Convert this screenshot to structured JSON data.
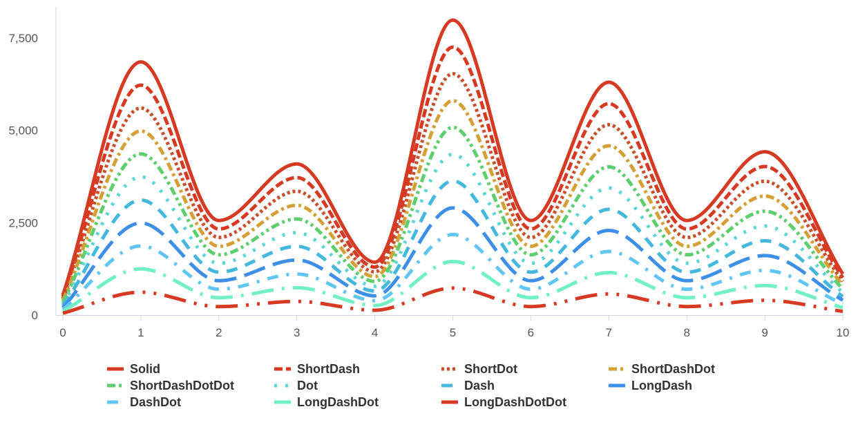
{
  "chart_data": {
    "type": "line",
    "title": "",
    "xlabel": "",
    "ylabel": "",
    "xlim": [
      0,
      10
    ],
    "ylim": [
      0,
      8300
    ],
    "x_ticks": [
      0,
      1,
      2,
      3,
      4,
      5,
      6,
      7,
      8,
      9,
      10
    ],
    "y_ticks": [
      0,
      2500,
      5000,
      7500
    ],
    "y_tick_labels": [
      "0",
      "2,500",
      "5,000",
      "7,500"
    ],
    "x": [
      0,
      1,
      2,
      3,
      4,
      5,
      6,
      7,
      8,
      9,
      10
    ],
    "legend_position": "bottom",
    "series": [
      {
        "name": "Solid",
        "color": "#d63a22",
        "dash": "solid",
        "values": [
          540,
          6850,
          2560,
          4090,
          1430,
          7980,
          2560,
          6300,
          2560,
          4420,
          1110
        ]
      },
      {
        "name": "ShortDash",
        "color": "#d63a22",
        "dash": "shortdash",
        "values": [
          490,
          6220,
          2330,
          3720,
          1300,
          7250,
          2330,
          5720,
          2330,
          4020,
          1010
        ]
      },
      {
        "name": "ShortDot",
        "color": "#c8502a",
        "dash": "shortdot",
        "values": [
          440,
          5600,
          2100,
          3350,
          1170,
          6530,
          2100,
          5150,
          2100,
          3620,
          910
        ]
      },
      {
        "name": "ShortDashDot",
        "color": "#d4a037",
        "dash": "shortdashdot",
        "values": [
          390,
          4980,
          1860,
          2970,
          1040,
          5800,
          1860,
          4580,
          1860,
          3220,
          810
        ]
      },
      {
        "name": "ShortDashDotDot",
        "color": "#5fce6e",
        "dash": "shortdashdotdot",
        "values": [
          340,
          4360,
          1630,
          2600,
          910,
          5080,
          1630,
          4010,
          1630,
          2810,
          710
        ]
      },
      {
        "name": "Dot",
        "color": "#5ed6d6",
        "dash": "dot",
        "values": [
          290,
          3740,
          1400,
          2230,
          780,
          4350,
          1400,
          3440,
          1400,
          2410,
          610
        ]
      },
      {
        "name": "Dash",
        "color": "#45b8de",
        "dash": "dash",
        "values": [
          250,
          3110,
          1160,
          1860,
          650,
          3630,
          1160,
          2860,
          1160,
          2010,
          500
        ]
      },
      {
        "name": "LongDash",
        "color": "#3d8fe8",
        "dash": "longdash",
        "values": [
          200,
          2490,
          930,
          1490,
          520,
          2900,
          930,
          2290,
          930,
          1610,
          400
        ]
      },
      {
        "name": "DashDot",
        "color": "#62c6f5",
        "dash": "dashdot",
        "values": [
          150,
          1870,
          700,
          1110,
          390,
          2180,
          700,
          1720,
          700,
          1210,
          300
        ]
      },
      {
        "name": "LongDashDot",
        "color": "#72f0c6",
        "dash": "longdashdot",
        "values": [
          100,
          1250,
          470,
          740,
          260,
          1450,
          470,
          1150,
          470,
          800,
          200
        ]
      },
      {
        "name": "LongDashDotDot",
        "color": "#d63a22",
        "dash": "longdashdotdot",
        "values": [
          50,
          620,
          230,
          370,
          130,
          730,
          230,
          570,
          230,
          400,
          100
        ]
      }
    ]
  }
}
